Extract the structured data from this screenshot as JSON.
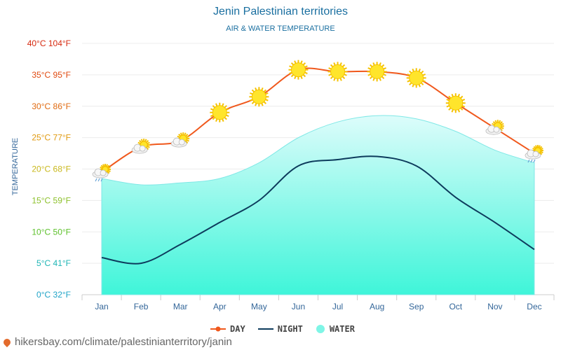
{
  "header": {
    "title": "Jenin Palestinian territories",
    "subtitle": "AIR & WATER TEMPERATURE"
  },
  "footer": {
    "source": "hikersbay.com/climate/palestinianterritory/janin"
  },
  "chart_data": {
    "type": "line",
    "title": "Jenin Palestinian territories",
    "subtitle": "AIR & WATER TEMPERATURE",
    "ylabel": "TEMPERATURE",
    "xlabel": "",
    "categories": [
      "Jan",
      "Feb",
      "Mar",
      "Apr",
      "May",
      "Jun",
      "Jul",
      "Aug",
      "Sep",
      "Oct",
      "Nov",
      "Dec"
    ],
    "ylim": [
      0,
      40
    ],
    "yticks": [
      {
        "value": 0,
        "label": "0°C 32°F",
        "color": "#1fa3c7"
      },
      {
        "value": 5,
        "label": "5°C 41°F",
        "color": "#1fb5b5"
      },
      {
        "value": 10,
        "label": "10°C 50°F",
        "color": "#5cc02a"
      },
      {
        "value": 15,
        "label": "15°C 59°F",
        "color": "#8cc02a"
      },
      {
        "value": 20,
        "label": "20°C 68°F",
        "color": "#c9b81c"
      },
      {
        "value": 25,
        "label": "25°C 77°F",
        "color": "#e09a10"
      },
      {
        "value": 30,
        "label": "30°C 86°F",
        "color": "#e06a10"
      },
      {
        "value": 35,
        "label": "35°C 95°F",
        "color": "#e04a10"
      },
      {
        "value": 40,
        "label": "40°C 104°F",
        "color": "#d62a10"
      }
    ],
    "series": [
      {
        "name": "DAY",
        "color": "#f0581c",
        "values": [
          19.5,
          23.5,
          24.5,
          29,
          31.5,
          35.8,
          35.5,
          35.5,
          34.5,
          30.5,
          26.5,
          22.5
        ]
      },
      {
        "name": "NIGHT",
        "color": "#0d3b5c",
        "values": [
          5.9,
          5,
          8,
          11.5,
          15,
          20.5,
          21.5,
          22,
          20.5,
          15.5,
          11.5,
          7.2
        ]
      },
      {
        "name": "WATER",
        "color": "#7ff5e6",
        "values": [
          18.5,
          17.5,
          17.8,
          18.5,
          21,
          25,
          27.5,
          28.5,
          28,
          26,
          23,
          21
        ]
      }
    ],
    "weather_icons": [
      "rain-sun-icon",
      "sun-cloud-icon",
      "sun-cloud-icon",
      "sun-icon",
      "sun-icon",
      "sun-icon",
      "sun-icon",
      "sun-icon",
      "sun-icon",
      "sun-icon",
      "sun-cloud-icon",
      "rain-sun-icon"
    ],
    "grid": true,
    "legend": "bottom-center"
  }
}
